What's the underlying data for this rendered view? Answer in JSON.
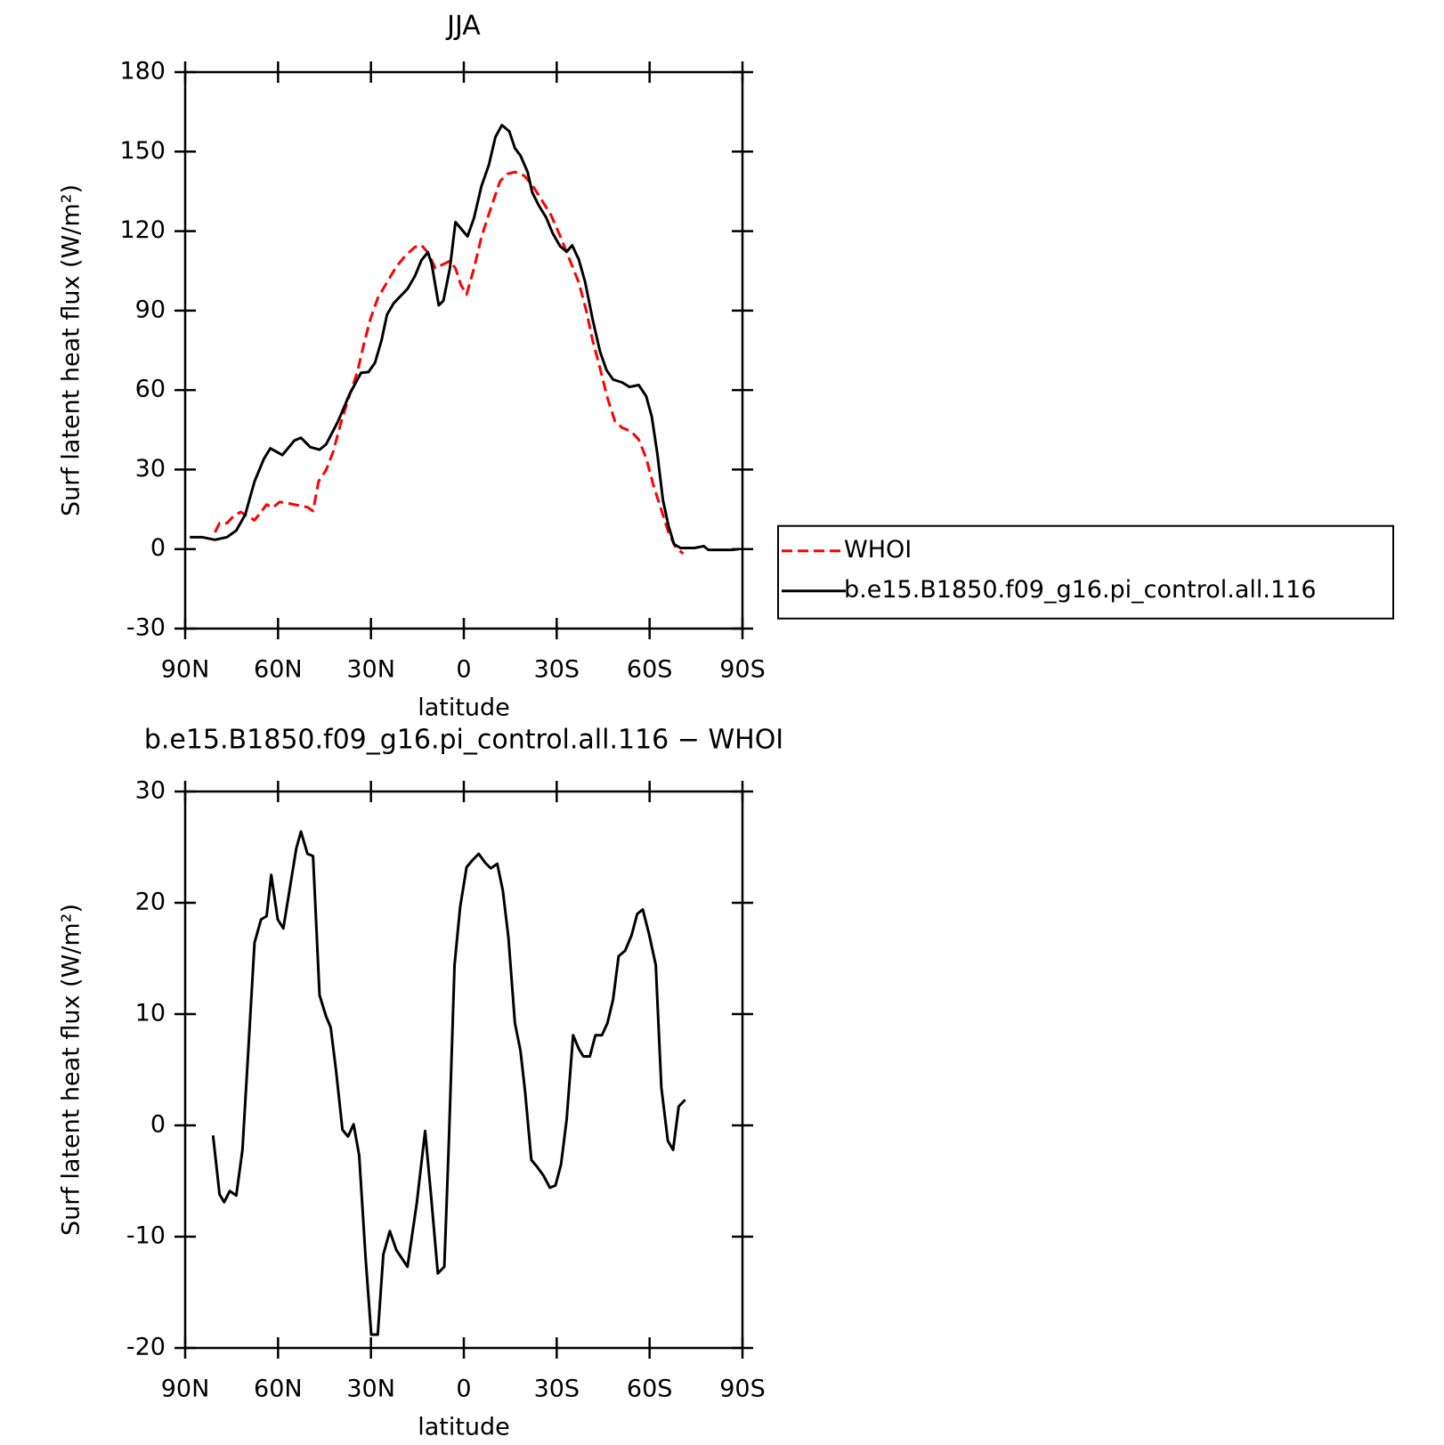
{
  "chart_data": [
    {
      "type": "line",
      "title": "JJA",
      "xlabel": "latitude",
      "ylabel": "Surf latent heat flux (W/m²)",
      "xlim": [
        90,
        -90
      ],
      "xticks": [
        {
          "value": 90,
          "label": "90N"
        },
        {
          "value": 60,
          "label": "60N"
        },
        {
          "value": 30,
          "label": "30N"
        },
        0,
        {
          "value": -30,
          "label": "30S"
        },
        {
          "value": -60,
          "label": "60S"
        },
        {
          "value": -90,
          "label": "90S"
        }
      ],
      "ylim": [
        -30,
        180
      ],
      "yticks": [
        -30,
        0,
        30,
        60,
        90,
        120,
        150,
        180
      ],
      "legend": "right",
      "series": [
        {
          "name": "WHOI",
          "color": "#ff0000",
          "dashed": true,
          "x": [
            80.4,
            78.9,
            76.5,
            74.5,
            72.1,
            69.7,
            67.6,
            65.5,
            63.7,
            61.6,
            59.5,
            56.5,
            53.5,
            50.5,
            48.7,
            46.9,
            44.5,
            42.2,
            39.8,
            37.4,
            34.4,
            32.3,
            30.2,
            27.8,
            24.8,
            21.8,
            18.8,
            15.8,
            13.7,
            11.6,
            9.2,
            6.8,
            4.5,
            2.7,
            0.9,
            -0.9,
            -3.3,
            -5.7,
            -8.7,
            -11.7,
            -14.1,
            -16.5,
            -19.5,
            -22.1,
            -25.1,
            -28.1,
            -31.1,
            -34.1,
            -37.1,
            -39.5,
            -41.6,
            -44,
            -46.4,
            -48.8,
            -51.1,
            -54.1,
            -56.5,
            -58.9,
            -61.3,
            -63.7,
            -66.1,
            -68.5,
            -70.9
          ],
          "values": [
            6.3,
            9.8,
            9.8,
            12.3,
            14,
            12.3,
            10.9,
            14,
            16.8,
            15.7,
            17.8,
            17.2,
            16.5,
            15.8,
            14.4,
            25.6,
            29.8,
            36.7,
            47.2,
            56.3,
            66.8,
            77.3,
            86.7,
            94.7,
            100.7,
            106.6,
            110.8,
            114,
            114.7,
            111.9,
            106,
            107.4,
            108.7,
            106,
            99.6,
            96.1,
            106,
            117.8,
            128.6,
            138.8,
            141.6,
            142.3,
            140.9,
            137.4,
            131.8,
            126.2,
            118.2,
            109.4,
            100.7,
            90.2,
            78.7,
            68.2,
            57,
            48.3,
            45.8,
            44.4,
            41.3,
            34.3,
            23.8,
            15.1,
            6.3,
            0.4,
            -1.7
          ]
        },
        {
          "name": "b.e15.B1850.f09_g16.pi_control.all.116",
          "color": "#000000",
          "dashed": false,
          "x": [
            88.5,
            84.6,
            80.4,
            76.5,
            73.5,
            70.6,
            67.6,
            64.6,
            62.5,
            58.6,
            54.7,
            52.6,
            49.6,
            46.6,
            44.5,
            40.7,
            36.8,
            33.2,
            30.8,
            28.7,
            26.6,
            24.8,
            22.7,
            18.2,
            15.8,
            13.7,
            11.6,
            10.4,
            8.1,
            6.6,
            4.5,
            2.7,
            -1.2,
            -3.3,
            -5.7,
            -8.1,
            -10.2,
            -12.3,
            -14.7,
            -16.5,
            -18.3,
            -20.6,
            -22.1,
            -24.2,
            -26.6,
            -28.7,
            -31.1,
            -33.2,
            -35,
            -37.1,
            -39.2,
            -41.6,
            -44,
            -46.1,
            -48.2,
            -51.1,
            -53.5,
            -56.5,
            -58.9,
            -60.7,
            -62.5,
            -64.3,
            -66.1,
            -67.9,
            -70,
            -74.5,
            -77.5,
            -79,
            -86.5,
            -88.8
          ],
          "values": [
            4.5,
            4.5,
            3.5,
            4.5,
            7,
            13,
            25.5,
            34,
            38,
            35.5,
            41,
            42,
            38.5,
            37.5,
            39.5,
            48,
            58.7,
            66.5,
            66.8,
            70.3,
            78.7,
            88.5,
            92.7,
            98.2,
            103,
            109,
            112,
            107.7,
            92,
            93.7,
            106,
            123.4,
            118,
            125,
            137,
            145,
            155.5,
            160,
            157.6,
            151.3,
            148.5,
            142.3,
            134.6,
            129.7,
            125.1,
            119.2,
            114.3,
            112.2,
            114.6,
            109.4,
            100.7,
            86.7,
            74.5,
            67.5,
            64,
            62.9,
            61.2,
            61.9,
            57.7,
            50,
            36,
            18.6,
            8.8,
            1.8,
            0.4,
            0.4,
            1.1,
            -0.3,
            -0.3,
            0
          ]
        }
      ]
    },
    {
      "type": "line",
      "title": "b.e15.B1850.f09_g16.pi_control.all.116 − WHOI",
      "xlabel": "latitude",
      "ylabel": "Surf latent heat flux (W/m²)",
      "xlim": [
        90,
        -90
      ],
      "xticks": [
        {
          "value": 90,
          "label": "90N"
        },
        {
          "value": 60,
          "label": "60N"
        },
        {
          "value": 30,
          "label": "30N"
        },
        0,
        {
          "value": -30,
          "label": "30S"
        },
        {
          "value": -60,
          "label": "60S"
        },
        {
          "value": -90,
          "label": "90S"
        }
      ],
      "ylim": [
        -20,
        30
      ],
      "yticks": [
        -20,
        -10,
        0,
        10,
        20,
        30
      ],
      "series": [
        {
          "color": "#000000",
          "dashed": false,
          "x": [
            81,
            78.9,
            77.4,
            75.6,
            73.5,
            71.5,
            69.7,
            67.6,
            65.5,
            63.7,
            62.2,
            60.1,
            58.3,
            56.2,
            54.1,
            52.6,
            50.5,
            48.7,
            46.6,
            44.5,
            43,
            41.3,
            39.2,
            37.4,
            35.6,
            33.8,
            31.7,
            29.9,
            27.8,
            26,
            23.9,
            21.8,
            18.2,
            15.2,
            12.5,
            10.4,
            8.4,
            6.3,
            4.8,
            3,
            1.2,
            -0.9,
            -2.7,
            -4.8,
            -6.9,
            -8.7,
            -10.8,
            -12.6,
            -14.4,
            -16.5,
            -18.3,
            -19.8,
            -21.8,
            -23.6,
            -25.7,
            -27.8,
            -29.6,
            -31.4,
            -33.2,
            -35.3,
            -37.1,
            -38.6,
            -40.7,
            -42.5,
            -44.6,
            -46.4,
            -48.2,
            -50,
            -52.1,
            -54.2,
            -56,
            -57.8,
            -59.9,
            -62,
            -63.8,
            -65.9,
            -67.6,
            -69.4,
            -71.5
          ],
          "values": [
            -0.9,
            -6.2,
            -6.9,
            -5.9,
            -6.3,
            -2.2,
            6.3,
            16.4,
            18.5,
            18.8,
            22.5,
            18.5,
            17.7,
            21.3,
            24.9,
            26.4,
            24.4,
            24.2,
            11.7,
            9.8,
            8.8,
            5,
            -0.4,
            -1,
            0.1,
            -2.7,
            -12,
            -18.8,
            -18.8,
            -11.6,
            -9.5,
            -11.2,
            -12.7,
            -7,
            -0.5,
            -6.9,
            -13.3,
            -12.7,
            -1.2,
            14.4,
            19.6,
            23.2,
            23.8,
            24.4,
            23.6,
            23.1,
            23.5,
            21.1,
            16.9,
            9.2,
            6.7,
            3,
            -3.1,
            -3.7,
            -4.5,
            -5.6,
            -5.4,
            -3.5,
            0.5,
            8.1,
            6.9,
            6.2,
            6.2,
            8.1,
            8.1,
            9.2,
            11.3,
            15.2,
            15.7,
            17.1,
            19,
            19.4,
            17.1,
            14.4,
            3.4,
            -1.4,
            -2.2,
            1.7,
            2.3
          ]
        }
      ]
    }
  ]
}
